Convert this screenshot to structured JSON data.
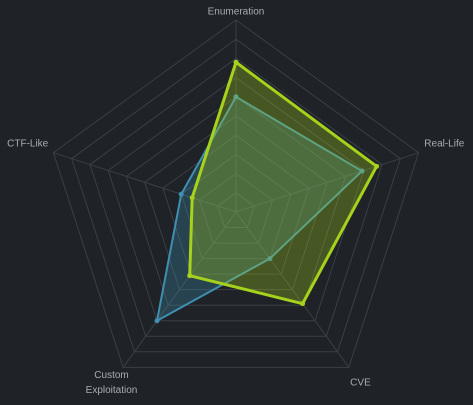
{
  "chart_data": {
    "type": "radar",
    "categories": [
      "Enumeration",
      "Real-Life",
      "CVE",
      "Custom Exploitation",
      "CTF-Like"
    ],
    "rlim": [
      0,
      100
    ],
    "rticks": [
      10,
      20,
      30,
      40,
      50,
      60,
      70,
      80,
      90,
      100
    ],
    "grid": true,
    "series": [
      {
        "color": "#3f8fb0",
        "values": [
          60,
          69,
          30,
          70,
          30
        ]
      },
      {
        "color": "#a6d21c",
        "values": [
          78,
          77,
          59,
          41,
          24
        ]
      }
    ]
  }
}
